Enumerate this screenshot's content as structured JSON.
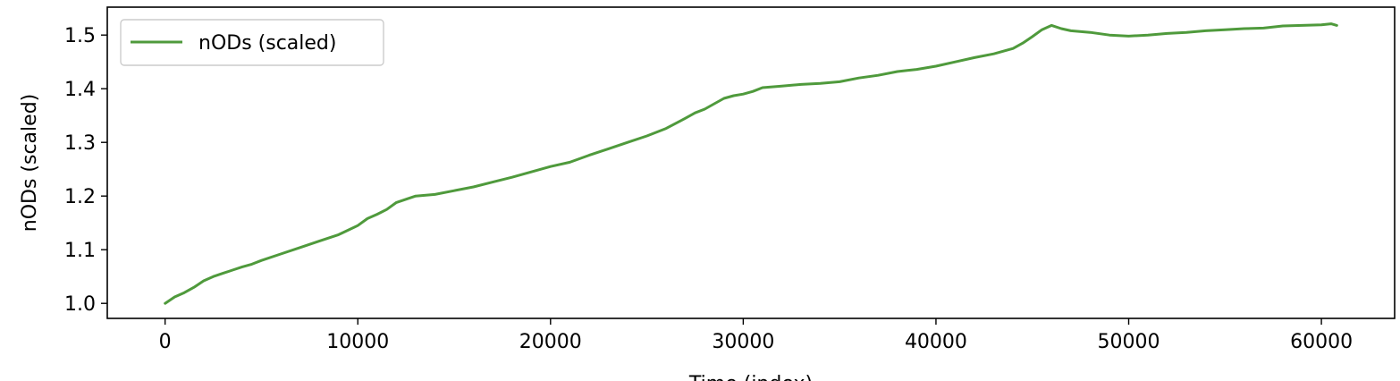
{
  "chart_data": {
    "type": "line",
    "title": "",
    "xlabel": "Time (index)",
    "ylabel": "nODs (scaled)",
    "xlim": [
      -3000,
      63800
    ],
    "ylim": [
      0.972,
      1.552
    ],
    "xticks": [
      0,
      10000,
      20000,
      30000,
      40000,
      50000,
      60000
    ],
    "xtick_labels": [
      "0",
      "10000",
      "20000",
      "30000",
      "40000",
      "50000",
      "60000"
    ],
    "yticks": [
      1.0,
      1.1,
      1.2,
      1.3,
      1.4,
      1.5
    ],
    "ytick_labels": [
      "1.0",
      "1.1",
      "1.2",
      "1.3",
      "1.4",
      "1.5"
    ],
    "grid": false,
    "legend_position": "top-left",
    "series": [
      {
        "name": "nODs (scaled)",
        "color": "#4f9a3c",
        "x": [
          0,
          500,
          1000,
          1500,
          2000,
          2500,
          3000,
          3500,
          4000,
          4500,
          5000,
          6000,
          7000,
          8000,
          9000,
          10000,
          10500,
          11000,
          11500,
          12000,
          12500,
          13000,
          14000,
          15000,
          16000,
          17000,
          18000,
          19000,
          20000,
          21000,
          22000,
          23000,
          24000,
          25000,
          26000,
          27000,
          27500,
          28000,
          28500,
          29000,
          29500,
          30000,
          30500,
          31000,
          32000,
          33000,
          34000,
          35000,
          36000,
          37000,
          38000,
          39000,
          40000,
          41000,
          42000,
          43000,
          44000,
          44500,
          45000,
          45500,
          46000,
          46500,
          47000,
          48000,
          49000,
          50000,
          51000,
          52000,
          53000,
          54000,
          55000,
          56000,
          57000,
          58000,
          59000,
          60000,
          60500,
          60800
        ],
        "y": [
          1.0,
          1.012,
          1.02,
          1.03,
          1.042,
          1.05,
          1.056,
          1.062,
          1.068,
          1.073,
          1.08,
          1.092,
          1.104,
          1.116,
          1.128,
          1.145,
          1.158,
          1.166,
          1.175,
          1.188,
          1.194,
          1.2,
          1.203,
          1.21,
          1.217,
          1.226,
          1.235,
          1.245,
          1.255,
          1.263,
          1.276,
          1.288,
          1.3,
          1.312,
          1.326,
          1.345,
          1.355,
          1.362,
          1.372,
          1.382,
          1.387,
          1.39,
          1.395,
          1.402,
          1.405,
          1.408,
          1.41,
          1.413,
          1.42,
          1.425,
          1.432,
          1.436,
          1.442,
          1.45,
          1.458,
          1.465,
          1.475,
          1.485,
          1.497,
          1.51,
          1.518,
          1.512,
          1.508,
          1.505,
          1.5,
          1.498,
          1.5,
          1.503,
          1.505,
          1.508,
          1.51,
          1.512,
          1.513,
          1.517,
          1.518,
          1.519,
          1.521,
          1.518
        ]
      }
    ]
  }
}
